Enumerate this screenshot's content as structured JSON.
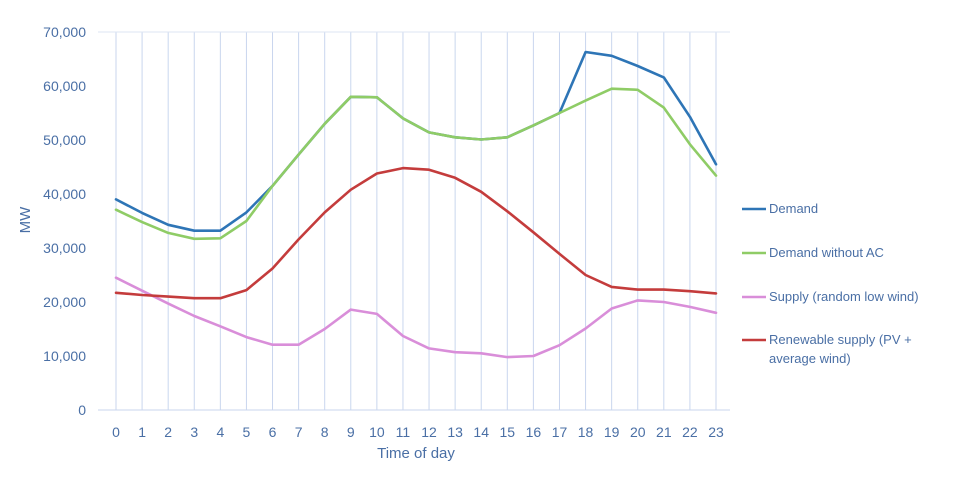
{
  "chart_data": {
    "type": "line",
    "title": "",
    "xlabel": "Time of day",
    "ylabel": "MW",
    "ylim": [
      0,
      70000
    ],
    "yticks": [
      0,
      10000,
      20000,
      30000,
      40000,
      50000,
      60000,
      70000
    ],
    "ytick_labels": [
      "0",
      "10,000",
      "20,000",
      "30,000",
      "40,000",
      "50,000",
      "60,000",
      "70,000"
    ],
    "categories": [
      "0",
      "1",
      "2",
      "3",
      "4",
      "5",
      "6",
      "7",
      "8",
      "9",
      "10",
      "11",
      "12",
      "13",
      "14",
      "15",
      "16",
      "17",
      "18",
      "19",
      "20",
      "21",
      "22",
      "23"
    ],
    "grid": "vertical",
    "legend_position": "right",
    "series": [
      {
        "name": "Demand",
        "color": "#2e75b6",
        "values": [
          39000,
          36500,
          34300,
          33200,
          33200,
          36600,
          41500,
          47300,
          53000,
          58000,
          57900,
          54000,
          51400,
          50500,
          50100,
          50500,
          52700,
          55000,
          66300,
          65600,
          63700,
          61600,
          54300,
          45500
        ]
      },
      {
        "name": "Demand without AC",
        "color": "#8fcc66",
        "values": [
          37100,
          34800,
          32800,
          31700,
          31800,
          35000,
          41500,
          47300,
          53000,
          58000,
          57900,
          54000,
          51400,
          50500,
          50100,
          50500,
          52700,
          55000,
          57300,
          59500,
          59300,
          56000,
          49200,
          43400
        ]
      },
      {
        "name": "Supply (random low wind)",
        "color": "#d98ed9",
        "values": [
          24500,
          22100,
          19700,
          17400,
          15500,
          13500,
          12100,
          12100,
          15000,
          18600,
          17800,
          13700,
          11400,
          10700,
          10500,
          9800,
          10000,
          12000,
          15100,
          18800,
          20300,
          20000,
          19100,
          18000
        ]
      },
      {
        "name": "Renewable supply (PV + average wind)",
        "color": "#c43c3c",
        "legend_lines": [
          "Renewable supply (PV +",
          "average wind)"
        ],
        "values": [
          21700,
          21300,
          21000,
          20700,
          20700,
          22200,
          26200,
          31600,
          36600,
          40800,
          43800,
          44800,
          44500,
          43000,
          40400,
          36800,
          32900,
          28900,
          25000,
          22800,
          22300,
          22300,
          22000,
          21600
        ]
      }
    ]
  }
}
